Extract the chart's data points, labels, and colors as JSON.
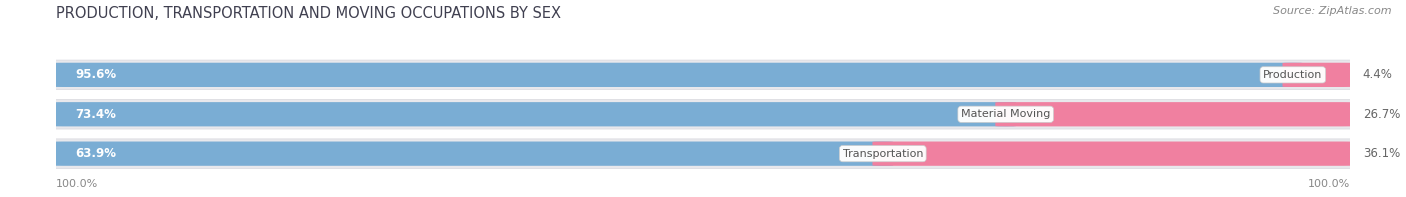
{
  "title": "PRODUCTION, TRANSPORTATION AND MOVING OCCUPATIONS BY SEX",
  "source": "Source: ZipAtlas.com",
  "categories": [
    "Production",
    "Material Moving",
    "Transportation"
  ],
  "male_values": [
    95.6,
    73.4,
    63.9
  ],
  "female_values": [
    4.4,
    26.7,
    36.1
  ],
  "male_color": "#7aadd4",
  "female_color": "#f080a0",
  "bg_row_color": "#e8e8ec",
  "bg_row_edge": "#d8d8de",
  "title_fontsize": 10.5,
  "source_fontsize": 8,
  "bar_label_fontsize": 8.5,
  "category_fontsize": 8,
  "legend_fontsize": 9,
  "axis_label_fontsize": 8,
  "left_label": "100.0%",
  "right_label": "100.0%",
  "title_color": "#404050",
  "source_color": "#888888",
  "axis_label_color": "#888888",
  "legend_label_color": "#555555",
  "male_text_color": "white",
  "female_text_color": "#666666",
  "cat_label_color": "#555555",
  "cat_box_color": "white",
  "cat_box_edge": "#cccccc"
}
